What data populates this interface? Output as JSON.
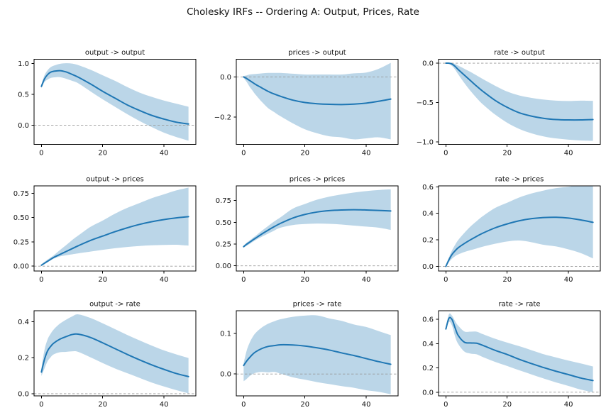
{
  "figure": {
    "title": "Cholesky IRFs -- Ordering A: Output, Prices, Rate",
    "background": "#ffffff",
    "line_color": "#1f77b4",
    "band_color": "rgba(31,119,180,0.30)",
    "zero_line_color": "#9a9a9a",
    "spine_color": "#000000"
  },
  "chart_data": [
    {
      "type": "line",
      "title": "output -> output",
      "xlabel": "",
      "ylabel": "",
      "x": [
        0,
        1,
        2,
        3,
        4,
        6,
        8,
        10,
        12,
        16,
        20,
        24,
        28,
        32,
        36,
        40,
        44,
        48
      ],
      "series": [
        {
          "name": "median",
          "values": [
            0.63,
            0.75,
            0.82,
            0.86,
            0.875,
            0.885,
            0.865,
            0.825,
            0.78,
            0.67,
            0.55,
            0.44,
            0.33,
            0.24,
            0.16,
            0.1,
            0.05,
            0.02
          ]
        },
        {
          "name": "ci_lower",
          "values": [
            0.6,
            0.7,
            0.74,
            0.765,
            0.775,
            0.78,
            0.755,
            0.72,
            0.68,
            0.55,
            0.42,
            0.3,
            0.18,
            0.07,
            -0.03,
            -0.12,
            -0.19,
            -0.25
          ]
        },
        {
          "name": "ci_upper",
          "values": [
            0.66,
            0.81,
            0.89,
            0.94,
            0.965,
            0.995,
            1.005,
            1.0,
            0.975,
            0.9,
            0.81,
            0.72,
            0.62,
            0.53,
            0.46,
            0.4,
            0.35,
            0.3
          ]
        }
      ],
      "xlim": [
        -2.4,
        50.4
      ],
      "ylim": [
        -0.31,
        1.07
      ],
      "xticks": {
        "values": [
          0,
          20,
          40
        ],
        "labels": [
          "0",
          "20",
          "40"
        ]
      },
      "yticks": {
        "values": [
          0.0,
          0.5,
          1.0
        ],
        "labels": [
          "0.0",
          "0.5",
          "1.0"
        ]
      },
      "zero_line": true,
      "grid": false,
      "legend": "none"
    },
    {
      "type": "line",
      "title": "prices -> output",
      "xlabel": "",
      "ylabel": "",
      "x": [
        0,
        1,
        2,
        3,
        4,
        6,
        8,
        10,
        12,
        16,
        20,
        24,
        28,
        32,
        36,
        40,
        44,
        48
      ],
      "series": [
        {
          "name": "median",
          "values": [
            0.0,
            -0.008,
            -0.018,
            -0.028,
            -0.038,
            -0.055,
            -0.072,
            -0.085,
            -0.096,
            -0.115,
            -0.127,
            -0.133,
            -0.136,
            -0.137,
            -0.135,
            -0.13,
            -0.121,
            -0.11
          ]
        },
        {
          "name": "ci_lower",
          "values": [
            -0.005,
            -0.025,
            -0.05,
            -0.07,
            -0.09,
            -0.125,
            -0.155,
            -0.175,
            -0.195,
            -0.23,
            -0.26,
            -0.28,
            -0.295,
            -0.3,
            -0.31,
            -0.305,
            -0.3,
            -0.31
          ]
        },
        {
          "name": "ci_upper",
          "values": [
            0.005,
            0.008,
            0.012,
            0.014,
            0.015,
            0.018,
            0.02,
            0.02,
            0.02,
            0.016,
            0.012,
            0.012,
            0.012,
            0.012,
            0.018,
            0.022,
            0.04,
            0.07
          ]
        }
      ],
      "xlim": [
        -2.4,
        50.4
      ],
      "ylim": [
        -0.335,
        0.088
      ],
      "xticks": {
        "values": [
          0,
          20,
          40
        ],
        "labels": [
          "0",
          "20",
          "40"
        ]
      },
      "yticks": {
        "values": [
          -0.2,
          0.0
        ],
        "labels": [
          "−0.2",
          "0.0"
        ]
      },
      "zero_line": true,
      "grid": false,
      "legend": "none"
    },
    {
      "type": "line",
      "title": "rate -> output",
      "xlabel": "",
      "ylabel": "",
      "x": [
        0,
        1,
        2,
        3,
        4,
        6,
        8,
        10,
        12,
        16,
        20,
        24,
        28,
        32,
        36,
        40,
        44,
        48
      ],
      "series": [
        {
          "name": "median",
          "values": [
            0.0,
            0.0,
            -0.012,
            -0.04,
            -0.08,
            -0.15,
            -0.22,
            -0.29,
            -0.355,
            -0.47,
            -0.56,
            -0.63,
            -0.672,
            -0.7,
            -0.715,
            -0.72,
            -0.72,
            -0.715
          ]
        },
        {
          "name": "ci_lower",
          "values": [
            -0.005,
            -0.012,
            -0.035,
            -0.08,
            -0.14,
            -0.25,
            -0.35,
            -0.44,
            -0.52,
            -0.65,
            -0.755,
            -0.835,
            -0.89,
            -0.93,
            -0.955,
            -0.97,
            -0.98,
            -0.985
          ]
        },
        {
          "name": "ci_upper",
          "values": [
            0.005,
            0.008,
            0.005,
            -0.01,
            -0.03,
            -0.07,
            -0.11,
            -0.155,
            -0.2,
            -0.285,
            -0.36,
            -0.41,
            -0.44,
            -0.462,
            -0.475,
            -0.48,
            -0.475,
            -0.478
          ]
        }
      ],
      "xlim": [
        -2.4,
        50.4
      ],
      "ylim": [
        -1.03,
        0.05
      ],
      "xticks": {
        "values": [
          0,
          20,
          40
        ],
        "labels": [
          "0",
          "20",
          "40"
        ]
      },
      "yticks": {
        "values": [
          -1.0,
          -0.5,
          0.0
        ],
        "labels": [
          "−1.0",
          "−0.5",
          "0.0"
        ]
      },
      "zero_line": true,
      "grid": false,
      "legend": "none"
    },
    {
      "type": "line",
      "title": "output -> prices",
      "xlabel": "",
      "ylabel": "",
      "x": [
        0,
        1,
        2,
        3,
        4,
        6,
        8,
        10,
        12,
        16,
        20,
        24,
        28,
        32,
        36,
        40,
        44,
        48
      ],
      "series": [
        {
          "name": "median",
          "values": [
            0.01,
            0.03,
            0.05,
            0.07,
            0.09,
            0.12,
            0.15,
            0.18,
            0.21,
            0.265,
            0.31,
            0.355,
            0.395,
            0.43,
            0.458,
            0.48,
            0.497,
            0.51
          ]
        },
        {
          "name": "ci_lower",
          "values": [
            0.005,
            0.022,
            0.04,
            0.06,
            0.077,
            0.1,
            0.112,
            0.122,
            0.132,
            0.15,
            0.168,
            0.185,
            0.198,
            0.208,
            0.215,
            0.219,
            0.22,
            0.212
          ]
        },
        {
          "name": "ci_upper",
          "values": [
            0.018,
            0.045,
            0.068,
            0.09,
            0.112,
            0.165,
            0.215,
            0.268,
            0.315,
            0.405,
            0.47,
            0.54,
            0.6,
            0.65,
            0.7,
            0.74,
            0.78,
            0.81
          ]
        }
      ],
      "xlim": [
        -2.4,
        50.4
      ],
      "ylim": [
        -0.05,
        0.827
      ],
      "xticks": {
        "values": [
          0,
          20,
          40
        ],
        "labels": [
          "0",
          "20",
          "40"
        ]
      },
      "yticks": {
        "values": [
          0.0,
          0.25,
          0.5,
          0.75
        ],
        "labels": [
          "0.00",
          "0.25",
          "0.50",
          "0.75"
        ]
      },
      "zero_line": true,
      "grid": false,
      "legend": "none"
    },
    {
      "type": "line",
      "title": "prices -> prices",
      "xlabel": "",
      "ylabel": "",
      "x": [
        0,
        1,
        2,
        3,
        4,
        6,
        8,
        10,
        12,
        16,
        20,
        24,
        28,
        32,
        36,
        40,
        44,
        48
      ],
      "series": [
        {
          "name": "median",
          "values": [
            0.22,
            0.248,
            0.272,
            0.297,
            0.32,
            0.367,
            0.41,
            0.45,
            0.487,
            0.548,
            0.59,
            0.618,
            0.634,
            0.641,
            0.644,
            0.641,
            0.636,
            0.63
          ]
        },
        {
          "name": "ci_lower",
          "values": [
            0.208,
            0.23,
            0.252,
            0.275,
            0.297,
            0.335,
            0.37,
            0.405,
            0.437,
            0.468,
            0.48,
            0.485,
            0.482,
            0.474,
            0.462,
            0.45,
            0.438,
            0.412
          ]
        },
        {
          "name": "ci_upper",
          "values": [
            0.232,
            0.266,
            0.292,
            0.32,
            0.347,
            0.405,
            0.458,
            0.51,
            0.556,
            0.655,
            0.71,
            0.76,
            0.795,
            0.82,
            0.842,
            0.858,
            0.87,
            0.878
          ]
        }
      ],
      "xlim": [
        -2.4,
        50.4
      ],
      "ylim": [
        -0.06,
        0.918
      ],
      "xticks": {
        "values": [
          0,
          20,
          40
        ],
        "labels": [
          "0",
          "20",
          "40"
        ]
      },
      "yticks": {
        "values": [
          0.0,
          0.25,
          0.5,
          0.75
        ],
        "labels": [
          "0.00",
          "0.25",
          "0.50",
          "0.75"
        ]
      },
      "zero_line": true,
      "grid": false,
      "legend": "none"
    },
    {
      "type": "line",
      "title": "rate -> prices",
      "xlabel": "",
      "ylabel": "",
      "x": [
        0,
        1,
        2,
        3,
        4,
        6,
        8,
        10,
        12,
        16,
        20,
        24,
        28,
        32,
        36,
        40,
        44,
        48
      ],
      "series": [
        {
          "name": "median",
          "values": [
            0.0,
            0.05,
            0.09,
            0.117,
            0.14,
            0.172,
            0.2,
            0.226,
            0.25,
            0.29,
            0.32,
            0.344,
            0.36,
            0.368,
            0.37,
            0.364,
            0.35,
            0.332
          ]
        },
        {
          "name": "ci_lower",
          "values": [
            0.0,
            0.032,
            0.058,
            0.077,
            0.09,
            0.108,
            0.122,
            0.135,
            0.148,
            0.17,
            0.188,
            0.195,
            0.182,
            0.162,
            0.15,
            0.128,
            0.1,
            0.06
          ]
        },
        {
          "name": "ci_upper",
          "values": [
            0.005,
            0.068,
            0.12,
            0.162,
            0.198,
            0.252,
            0.3,
            0.34,
            0.378,
            0.44,
            0.48,
            0.52,
            0.55,
            0.572,
            0.59,
            0.6,
            0.618,
            0.608
          ]
        }
      ],
      "xlim": [
        -2.4,
        50.4
      ],
      "ylim": [
        -0.035,
        0.607
      ],
      "xticks": {
        "values": [
          0,
          20,
          40
        ],
        "labels": [
          "0",
          "20",
          "40"
        ]
      },
      "yticks": {
        "values": [
          0.0,
          0.2,
          0.4,
          0.6
        ],
        "labels": [
          "0.0",
          "0.2",
          "0.4",
          "0.6"
        ]
      },
      "zero_line": true,
      "grid": false,
      "legend": "none"
    },
    {
      "type": "line",
      "title": "output -> rate",
      "xlabel": "",
      "ylabel": "",
      "x": [
        0,
        1,
        2,
        3,
        4,
        6,
        8,
        10,
        12,
        16,
        20,
        24,
        28,
        32,
        36,
        40,
        44,
        48
      ],
      "series": [
        {
          "name": "median",
          "values": [
            0.12,
            0.19,
            0.237,
            0.262,
            0.28,
            0.302,
            0.316,
            0.328,
            0.33,
            0.312,
            0.282,
            0.25,
            0.218,
            0.188,
            0.16,
            0.135,
            0.112,
            0.095
          ]
        },
        {
          "name": "ci_lower",
          "values": [
            0.098,
            0.14,
            0.18,
            0.202,
            0.218,
            0.23,
            0.232,
            0.235,
            0.232,
            0.202,
            0.17,
            0.14,
            0.114,
            0.088,
            0.062,
            0.04,
            0.02,
            0.002
          ]
        },
        {
          "name": "ci_upper",
          "values": [
            0.142,
            0.242,
            0.3,
            0.332,
            0.356,
            0.388,
            0.41,
            0.428,
            0.44,
            0.42,
            0.39,
            0.358,
            0.326,
            0.296,
            0.267,
            0.24,
            0.218,
            0.198
          ]
        }
      ],
      "xlim": [
        -2.4,
        50.4
      ],
      "ylim": [
        -0.012,
        0.46
      ],
      "xticks": {
        "values": [
          0,
          20,
          40
        ],
        "labels": [
          "0",
          "20",
          "40"
        ]
      },
      "yticks": {
        "values": [
          0.0,
          0.2,
          0.4
        ],
        "labels": [
          "0.0",
          "0.2",
          "0.4"
        ]
      },
      "zero_line": true,
      "grid": false,
      "legend": "none"
    },
    {
      "type": "line",
      "title": "prices -> rate",
      "xlabel": "",
      "ylabel": "",
      "x": [
        0,
        1,
        2,
        3,
        4,
        6,
        8,
        10,
        12,
        16,
        20,
        24,
        28,
        32,
        36,
        40,
        44,
        48
      ],
      "series": [
        {
          "name": "median",
          "values": [
            0.021,
            0.032,
            0.041,
            0.049,
            0.055,
            0.063,
            0.068,
            0.07,
            0.072,
            0.0715,
            0.069,
            0.0645,
            0.059,
            0.052,
            0.0455,
            0.038,
            0.0305,
            0.024
          ]
        },
        {
          "name": "ci_lower",
          "values": [
            -0.018,
            -0.012,
            -0.005,
            0.0,
            0.003,
            0.005,
            0.004,
            0.005,
            0.001,
            -0.008,
            -0.014,
            -0.02,
            -0.025,
            -0.03,
            -0.034,
            -0.04,
            -0.044,
            -0.05
          ]
        },
        {
          "name": "ci_upper",
          "values": [
            0.027,
            0.058,
            0.078,
            0.092,
            0.102,
            0.115,
            0.124,
            0.13,
            0.135,
            0.141,
            0.144,
            0.1445,
            0.137,
            0.131,
            0.122,
            0.116,
            0.106,
            0.096
          ]
        }
      ],
      "xlim": [
        -2.4,
        50.4
      ],
      "ylim": [
        -0.054,
        0.156
      ],
      "xticks": {
        "values": [
          0,
          20,
          40
        ],
        "labels": [
          "0",
          "20",
          "40"
        ]
      },
      "yticks": {
        "values": [
          0.0,
          0.1
        ],
        "labels": [
          "0.0",
          "0.1"
        ]
      },
      "zero_line": true,
      "grid": false,
      "legend": "none"
    },
    {
      "type": "line",
      "title": "rate -> rate",
      "xlabel": "",
      "ylabel": "",
      "x": [
        0,
        1,
        2,
        3,
        4,
        6,
        8,
        10,
        12,
        16,
        20,
        24,
        28,
        32,
        36,
        40,
        44,
        48
      ],
      "series": [
        {
          "name": "median",
          "values": [
            0.52,
            0.608,
            0.598,
            0.53,
            0.468,
            0.412,
            0.405,
            0.403,
            0.386,
            0.345,
            0.31,
            0.27,
            0.235,
            0.202,
            0.172,
            0.145,
            0.117,
            0.096
          ]
        },
        {
          "name": "ci_lower",
          "values": [
            0.508,
            0.578,
            0.548,
            0.458,
            0.398,
            0.335,
            0.318,
            0.312,
            0.29,
            0.25,
            0.216,
            0.18,
            0.146,
            0.112,
            0.08,
            0.052,
            0.022,
            0.0
          ]
        },
        {
          "name": "ci_upper",
          "values": [
            0.532,
            0.642,
            0.63,
            0.585,
            0.548,
            0.5,
            0.498,
            0.498,
            0.478,
            0.44,
            0.408,
            0.378,
            0.345,
            0.312,
            0.286,
            0.26,
            0.237,
            0.212
          ]
        }
      ],
      "xlim": [
        -2.4,
        50.4
      ],
      "ylim": [
        -0.03,
        0.67
      ],
      "xticks": {
        "values": [
          0,
          20,
          40
        ],
        "labels": [
          "0",
          "20",
          "40"
        ]
      },
      "yticks": {
        "values": [
          0.0,
          0.2,
          0.4,
          0.6
        ],
        "labels": [
          "0.0",
          "0.2",
          "0.4",
          "0.6"
        ]
      },
      "zero_line": true,
      "grid": false,
      "legend": "none"
    }
  ]
}
